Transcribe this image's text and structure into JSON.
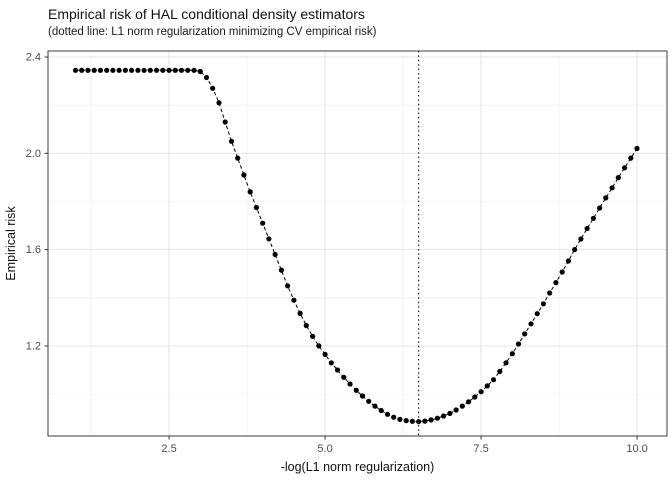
{
  "chart_data": {
    "type": "scatter",
    "title": "Empirical risk of HAL conditional density estimators",
    "subtitle": "(dotted line: L1 norm regularization minimizing CV empirical risk)",
    "xlabel": "-log(L1 norm regularization)",
    "ylabel": "Empirical risk",
    "xlim": [
      0.56,
      10.48
    ],
    "ylim": [
      0.826,
      2.425
    ],
    "x_ticks": [
      2.5,
      5.0,
      7.5,
      10.0
    ],
    "x_tick_labels": [
      "2.5",
      "5.0",
      "7.5",
      "10.0"
    ],
    "y_ticks": [
      1.2,
      1.6,
      2.0,
      2.4
    ],
    "y_tick_labels": [
      "1.2",
      "1.6",
      "2.0",
      "2.4"
    ],
    "x_minor_ticks": [
      1.25,
      3.75,
      6.25,
      8.75
    ],
    "y_minor_ticks": [
      1.0,
      1.4,
      1.8,
      2.2
    ],
    "grid": true,
    "legend": "none",
    "vline_x": 6.5,
    "vline_style": "dotted",
    "line_style": "dashed",
    "point_style": "filled-circle",
    "points": [
      [
        1.0,
        2.345
      ],
      [
        1.1,
        2.345
      ],
      [
        1.2,
        2.345
      ],
      [
        1.3,
        2.345
      ],
      [
        1.4,
        2.345
      ],
      [
        1.5,
        2.345
      ],
      [
        1.6,
        2.345
      ],
      [
        1.7,
        2.345
      ],
      [
        1.8,
        2.345
      ],
      [
        1.9,
        2.345
      ],
      [
        2.0,
        2.345
      ],
      [
        2.1,
        2.345
      ],
      [
        2.2,
        2.345
      ],
      [
        2.3,
        2.345
      ],
      [
        2.4,
        2.345
      ],
      [
        2.5,
        2.345
      ],
      [
        2.6,
        2.345
      ],
      [
        2.7,
        2.345
      ],
      [
        2.8,
        2.345
      ],
      [
        2.9,
        2.345
      ],
      [
        3.0,
        2.34
      ],
      [
        3.1,
        2.315
      ],
      [
        3.2,
        2.27
      ],
      [
        3.3,
        2.21
      ],
      [
        3.4,
        2.13
      ],
      [
        3.5,
        2.05
      ],
      [
        3.6,
        1.98
      ],
      [
        3.7,
        1.91
      ],
      [
        3.8,
        1.84
      ],
      [
        3.9,
        1.775
      ],
      [
        4.0,
        1.71
      ],
      [
        4.1,
        1.645
      ],
      [
        4.2,
        1.58
      ],
      [
        4.3,
        1.515
      ],
      [
        4.4,
        1.45
      ],
      [
        4.5,
        1.39
      ],
      [
        4.6,
        1.335
      ],
      [
        4.7,
        1.285
      ],
      [
        4.8,
        1.24
      ],
      [
        4.9,
        1.2
      ],
      [
        5.0,
        1.165
      ],
      [
        5.1,
        1.13
      ],
      [
        5.2,
        1.1
      ],
      [
        5.3,
        1.07
      ],
      [
        5.4,
        1.042
      ],
      [
        5.5,
        1.016
      ],
      [
        5.6,
        0.992
      ],
      [
        5.7,
        0.97
      ],
      [
        5.8,
        0.95
      ],
      [
        5.9,
        0.932
      ],
      [
        6.0,
        0.916
      ],
      [
        6.1,
        0.904
      ],
      [
        6.2,
        0.895
      ],
      [
        6.3,
        0.89
      ],
      [
        6.4,
        0.887
      ],
      [
        6.5,
        0.886
      ],
      [
        6.6,
        0.888
      ],
      [
        6.7,
        0.893
      ],
      [
        6.8,
        0.9
      ],
      [
        6.9,
        0.909
      ],
      [
        7.0,
        0.92
      ],
      [
        7.1,
        0.934
      ],
      [
        7.2,
        0.95
      ],
      [
        7.3,
        0.968
      ],
      [
        7.4,
        0.988
      ],
      [
        7.5,
        1.01
      ],
      [
        7.6,
        1.034
      ],
      [
        7.7,
        1.06
      ],
      [
        7.8,
        1.094
      ],
      [
        7.9,
        1.13
      ],
      [
        8.0,
        1.168
      ],
      [
        8.1,
        1.208
      ],
      [
        8.2,
        1.25
      ],
      [
        8.3,
        1.292
      ],
      [
        8.4,
        1.334
      ],
      [
        8.5,
        1.375
      ],
      [
        8.6,
        1.42
      ],
      [
        8.7,
        1.463
      ],
      [
        8.8,
        1.507
      ],
      [
        8.9,
        1.553
      ],
      [
        9.0,
        1.6
      ],
      [
        9.1,
        1.644
      ],
      [
        9.2,
        1.688
      ],
      [
        9.3,
        1.73
      ],
      [
        9.4,
        1.773
      ],
      [
        9.5,
        1.815
      ],
      [
        9.6,
        1.857
      ],
      [
        9.7,
        1.899
      ],
      [
        9.8,
        1.94
      ],
      [
        9.9,
        1.98
      ],
      [
        10.0,
        2.02
      ]
    ]
  },
  "colors": {
    "point": "#000000",
    "line": "#000000",
    "vline": "#000000",
    "grid_major": "#e4e4e4",
    "grid_minor": "#f1f1f1",
    "panel_border": "#3c3c3c",
    "tick_mark": "#333333",
    "tick_text": "#4d4d4d",
    "title_text": "#111111",
    "panel_bg": "#ffffff"
  }
}
